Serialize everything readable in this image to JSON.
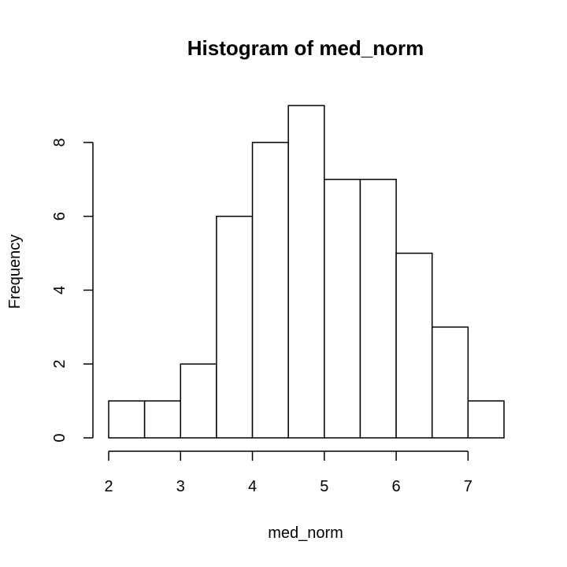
{
  "chart_data": {
    "type": "bar",
    "title": "Histogram of med_norm",
    "xlabel": "med_norm",
    "ylabel": "Frequency",
    "bins": [
      {
        "start": 2.0,
        "end": 2.5,
        "count": 1
      },
      {
        "start": 2.5,
        "end": 3.0,
        "count": 1
      },
      {
        "start": 3.0,
        "end": 3.5,
        "count": 2
      },
      {
        "start": 3.5,
        "end": 4.0,
        "count": 6
      },
      {
        "start": 4.0,
        "end": 4.5,
        "count": 8
      },
      {
        "start": 4.5,
        "end": 5.0,
        "count": 9
      },
      {
        "start": 5.0,
        "end": 5.5,
        "count": 7
      },
      {
        "start": 5.5,
        "end": 6.0,
        "count": 7
      },
      {
        "start": 6.0,
        "end": 6.5,
        "count": 5
      },
      {
        "start": 6.5,
        "end": 7.0,
        "count": 3
      },
      {
        "start": 7.0,
        "end": 7.5,
        "count": 1
      }
    ],
    "x_ticks": [
      2,
      3,
      4,
      5,
      6,
      7
    ],
    "y_ticks": [
      0,
      2,
      4,
      6,
      8
    ],
    "xlim": [
      2,
      7.5
    ],
    "ylim": [
      0,
      9
    ],
    "grid": false,
    "legend": "none",
    "bar_fill": "#ffffff",
    "bar_stroke": "#000000"
  }
}
